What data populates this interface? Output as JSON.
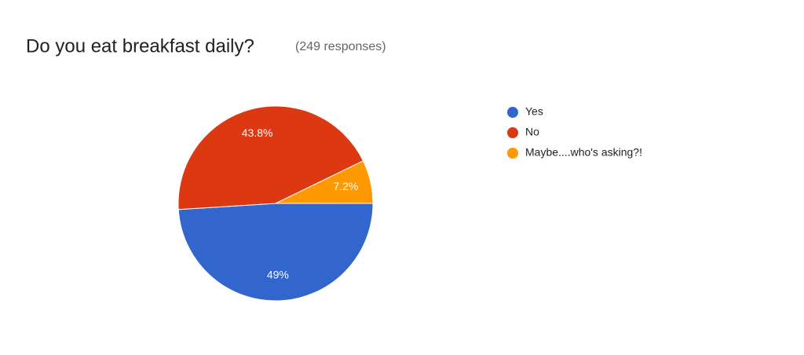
{
  "chart_data": {
    "type": "pie",
    "title": "Do you eat breakfast daily?",
    "subtitle": "(249 responses)",
    "categories": [
      "Yes",
      "No",
      "Maybe....who's asking?!"
    ],
    "values": [
      49,
      43.8,
      7.2
    ],
    "value_labels": [
      "49%",
      "43.8%",
      "7.2%"
    ],
    "colors": [
      "#3366cc",
      "#dc3912",
      "#ff9900"
    ]
  }
}
